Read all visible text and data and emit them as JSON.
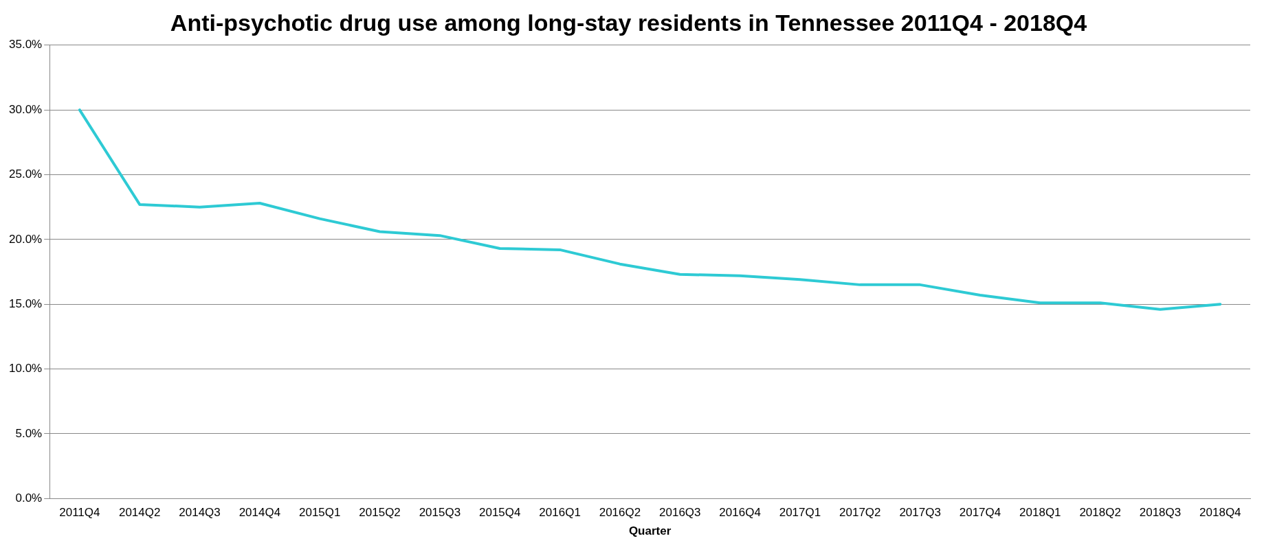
{
  "chart_data": {
    "type": "line",
    "title": "Anti-psychotic drug use among long-stay residents in Tennessee 2011Q4 - 2018Q4",
    "xlabel": "Quarter",
    "categories": [
      "2011Q4",
      "2014Q2",
      "2014Q3",
      "2014Q4",
      "2015Q1",
      "2015Q2",
      "2015Q3",
      "2015Q4",
      "2016Q1",
      "2016Q2",
      "2016Q3",
      "2016Q4",
      "2017Q1",
      "2017Q2",
      "2017Q3",
      "2017Q4",
      "2018Q1",
      "2018Q2",
      "2018Q3",
      "2018Q4"
    ],
    "series": [
      {
        "color": "#2ecad4",
        "values": [
          30.0,
          22.7,
          22.5,
          22.8,
          21.6,
          20.6,
          20.3,
          19.3,
          19.2,
          18.1,
          17.3,
          17.2,
          16.9,
          16.5,
          16.5,
          15.7,
          15.1,
          15.1,
          14.6,
          15.0
        ]
      }
    ],
    "ylim": [
      0,
      35
    ],
    "yticks": [
      {
        "value": 0,
        "label": "0.0%"
      },
      {
        "value": 5,
        "label": "5.0%"
      },
      {
        "value": 10,
        "label": "10.0%"
      },
      {
        "value": 15,
        "label": "15.0%"
      },
      {
        "value": 20,
        "label": "20.0%"
      },
      {
        "value": 25,
        "label": "25.0%"
      },
      {
        "value": 30,
        "label": "30.0%"
      },
      {
        "value": 35,
        "label": "35.0%"
      }
    ],
    "grid": "y",
    "legend": false,
    "marker": "none",
    "line_style": "solid"
  }
}
